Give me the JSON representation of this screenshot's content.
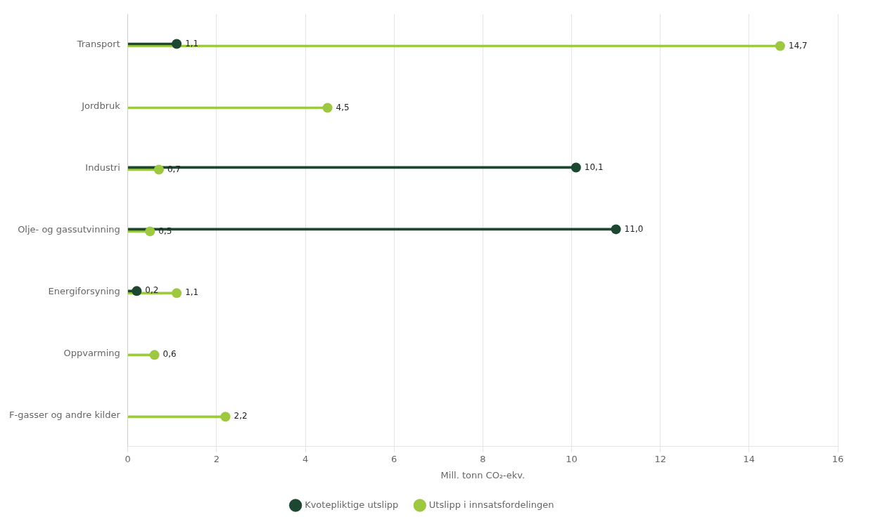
{
  "chart_data": {
    "type": "lollipop",
    "orientation": "horizontal",
    "categories": [
      "Transport",
      "Jordbruk",
      "Industri",
      "Olje- og gassutvinning",
      "Energiforsyning",
      "Oppvarming",
      "F-gasser og andre kilder"
    ],
    "series": [
      {
        "name": "Kvotepliktige utslipp",
        "color": "#1c4731",
        "marker": "circle",
        "values": [
          1.1,
          null,
          10.1,
          11.0,
          0.2,
          null,
          null
        ],
        "value_labels": [
          "1,1",
          null,
          "10,1",
          "11,0",
          "0,2",
          null,
          null
        ]
      },
      {
        "name": "Utslipp i innsatsfordelingen",
        "color": "#9dc840",
        "marker": "circle",
        "values": [
          14.7,
          4.5,
          0.7,
          0.5,
          1.1,
          0.6,
          2.2
        ],
        "value_labels": [
          "14,7",
          "4,5",
          "0,7",
          "0,5",
          "1,1",
          "0,6",
          "2,2"
        ]
      }
    ],
    "xlabel": "Mill. tonn CO₂-ekv.",
    "xlim": [
      0,
      16
    ],
    "xticks": [
      0,
      2,
      4,
      6,
      8,
      10,
      12,
      14,
      16
    ],
    "grid": true,
    "legend": "bottom",
    "data_labels": true
  }
}
